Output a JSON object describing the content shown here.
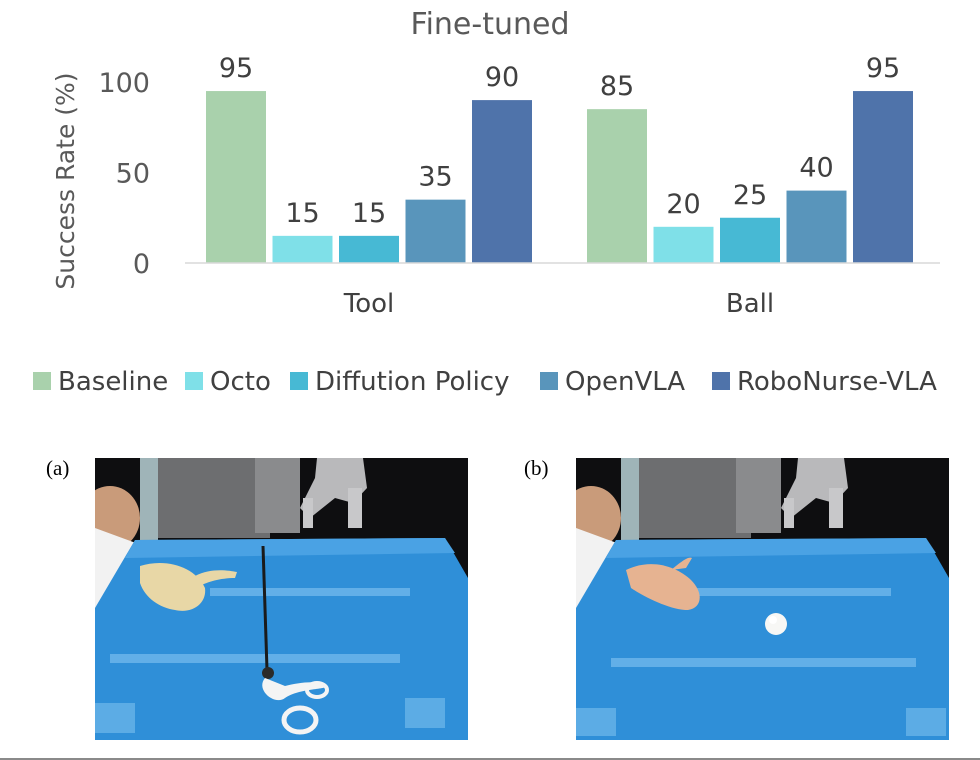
{
  "chart_data": {
    "type": "bar",
    "title": "Fine-tuned",
    "ylabel": "Success Rate (%)",
    "xlabel": "",
    "ylim": [
      0,
      100
    ],
    "yticks": [
      0,
      50,
      100
    ],
    "categories": [
      "Tool",
      "Ball"
    ],
    "series": [
      {
        "name": "Baseline",
        "color": "#a9d1ac",
        "values": [
          95,
          85
        ]
      },
      {
        "name": "Octo",
        "color": "#7fe0e8",
        "values": [
          15,
          20
        ]
      },
      {
        "name": "Diffution Policy",
        "color": "#47b9d4",
        "values": [
          15,
          25
        ]
      },
      {
        "name": "OpenVLA",
        "color": "#5995bb",
        "values": [
          35,
          40
        ]
      },
      {
        "name": "RoboNurse-VLA",
        "color": "#4f73aa",
        "values": [
          90,
          95
        ]
      }
    ],
    "legend_position": "bottom",
    "grid": false
  },
  "panels": [
    {
      "label": "(a)",
      "icon": "tool-handover-photo"
    },
    {
      "label": "(b)",
      "icon": "ball-handover-photo"
    }
  ]
}
